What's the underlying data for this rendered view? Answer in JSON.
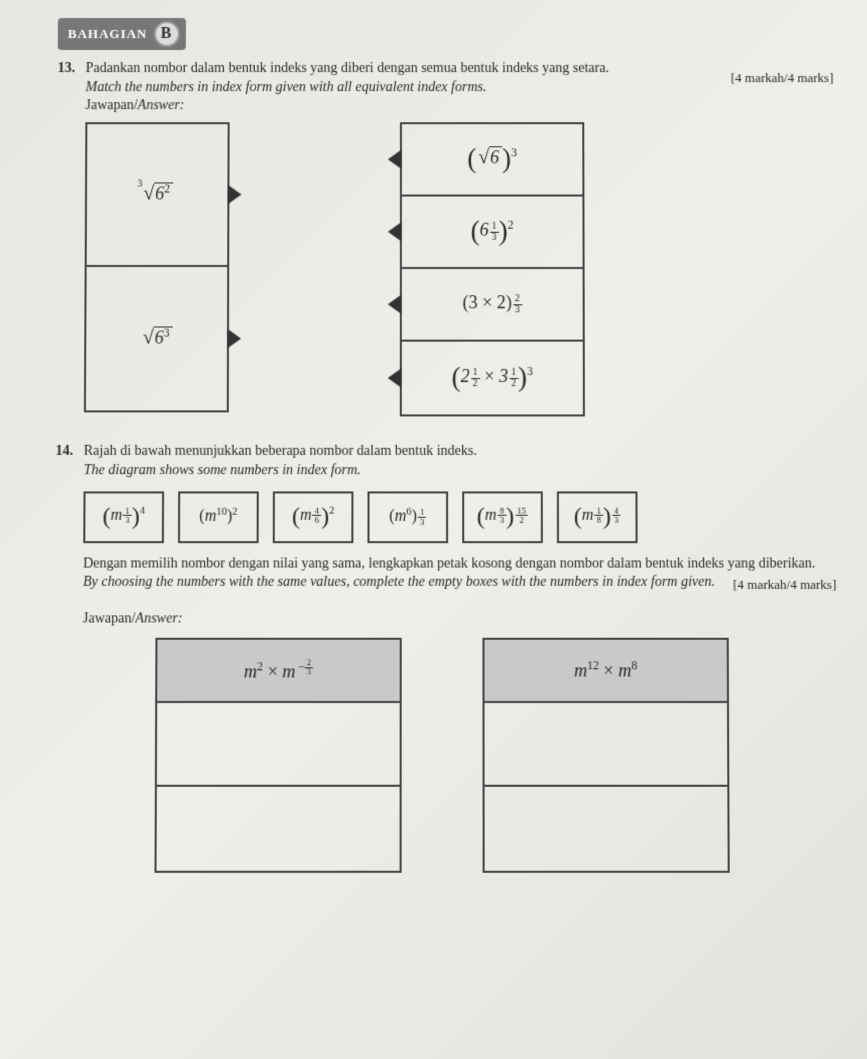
{
  "section": {
    "label": "BAHAGIAN",
    "letter": "B"
  },
  "q13": {
    "num": "13.",
    "text_my": "Padankan nombor dalam bentuk indeks yang diberi dengan semua bentuk indeks yang setara.",
    "text_en": "Match the numbers in index form given with all equivalent index forms.",
    "marks": "[4 markah/4 marks]",
    "answer_label_my": "Jawapan/",
    "answer_label_en": "Answer:",
    "left": [
      {
        "html": "<span class='root'><span class='idx'>3</span><span class='radix'>√</span><span class='radicand'>6<sup>2</sup></span></span>"
      },
      {
        "html": "<span class='root'><span class='radix'>√</span><span class='radicand'>6<sup>3</sup></span></span>"
      }
    ],
    "right": [
      {
        "html": "<span class='paren-lg'>(</span><span class='root'><span class='radix'>√</span><span class='radicand'>6</span></span><span class='paren-lg'>)</span><sup>3</sup>"
      },
      {
        "html": "<span class='paren-lg'>(</span>6<span class='exp-frac'><span class='fn'>1</span><span class='fd'>3</span></span><span class='paren-lg'>)</span><sup>2</sup>"
      },
      {
        "html": "<span class='up'>(3 × 2)</span><span class='exp-frac'><span class='fn'>2</span><span class='fd'>3</span></span>"
      },
      {
        "html": "<span class='paren-lg'>(</span>2<span class='exp-frac'><span class='fn'>1</span><span class='fd'>2</span></span> <span class='up'>×</span> 3<span class='exp-frac'><span class='fn'>1</span><span class='fd'>2</span></span><span class='paren-lg'>)</span><sup>3</sup>"
      }
    ]
  },
  "q14": {
    "num": "14.",
    "line1_my": "Rajah di bawah menunjukkan beberapa nombor dalam bentuk indeks.",
    "line1_en": "The diagram shows some numbers in index form.",
    "options": [
      "<span class='paren-lg'>(</span>m<span class='exp-frac'><span class='fn'>1</span><span class='fd'>3</span></span><span class='paren-lg'>)</span><sup>4</sup>",
      "<span class='up'>(</span>m<sup>10</sup><span class='up'>)</span><sup>2</sup>",
      "<span class='paren-lg'>(</span>m<span class='exp-frac'><span class='fn'>4</span><span class='fd'>6</span></span><span class='paren-lg'>)</span><sup>2</sup>",
      "<span class='up'>(</span>m<sup>6</sup><span class='up'>)</span><span class='exp-frac'><span class='fn'>1</span><span class='fd'>3</span></span>",
      "<span class='paren-lg'>(</span>m<span class='exp-frac'><span class='fn'>8</span><span class='fd'>3</span></span><span class='paren-lg'>)</span><span class='exp-frac'><span class='fn'>15</span><span class='fd'>2</span></span>",
      "<span class='paren-lg'>(</span>m<span class='exp-frac'><span class='fn'>1</span><span class='fd'>8</span></span><span class='paren-lg'>)</span><span class='exp-frac'><span class='fn'>4</span><span class='fd'>3</span></span>"
    ],
    "line2_my": "Dengan memilih nombor dengan nilai yang sama, lengkapkan petak kosong dengan nombor dalam bentuk indeks yang diberikan.",
    "line2_en": "By choosing the numbers with the same values, complete the empty boxes with the numbers in index form given.",
    "marks": "[4 markah/4 marks]",
    "answer_label_my": "Jawapan/",
    "answer_label_en": "Answer:",
    "table1_head": "m<sup>2</sup> <span class='up'>×</span> m<sup>&nbsp;−<span class='frac' style='vertical-align:middle'><span class='fn'>2</span><span class='fd'>3</span></span></sup>",
    "table2_head": "m<sup>12</sup> <span class='up'>×</span> m<sup>8</sup>"
  },
  "colors": {
    "page_bg": "#eceae6",
    "border": "#444444",
    "badge_bg": "#777777",
    "table_head_bg": "#c9c9c9",
    "text": "#2a2a2a"
  }
}
